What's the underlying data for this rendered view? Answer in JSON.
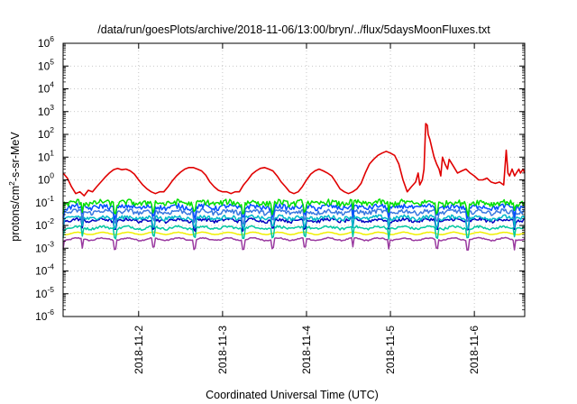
{
  "chart_data": {
    "type": "line",
    "title": "/data/run/goesPlots/archive/2018-11-06/13:00/bryn/../flux/5daysMoonFluxes.txt",
    "xlabel": "Coordinated Universal Time (UTC)",
    "ylabel": {
      "prefix": "protons/cm",
      "sup": "2",
      "suffix": "-s-sr-MeV"
    },
    "y_scale": "log",
    "ylim_exponents": [
      -6,
      6
    ],
    "y_tick_base": "10",
    "y_tick_exponents": [
      "-6",
      "-5",
      "-4",
      "-3",
      "-2",
      "-1",
      "0",
      "1",
      "2",
      "3",
      "4",
      "5",
      "6"
    ],
    "xlim_days": [
      1.1,
      6.6
    ],
    "x_ticks": [
      {
        "label": "2018-11-2",
        "day": 2
      },
      {
        "label": "2018-11-3",
        "day": 3
      },
      {
        "label": "2018-11-4",
        "day": 4
      },
      {
        "label": "2018-11-5",
        "day": 5
      },
      {
        "label": "2018-11-6",
        "day": 6
      }
    ],
    "grid": "dotted",
    "legend": "none",
    "series": [
      {
        "color": "#e00000",
        "x": [
          1.1,
          1.15,
          1.2,
          1.25,
          1.3,
          1.35,
          1.4,
          1.45,
          1.5,
          1.55,
          1.6,
          1.65,
          1.7,
          1.75,
          1.8,
          1.85,
          1.9,
          1.95,
          2.0,
          2.05,
          2.1,
          2.15,
          2.2,
          2.25,
          2.3,
          2.35,
          2.4,
          2.45,
          2.5,
          2.55,
          2.6,
          2.65,
          2.7,
          2.75,
          2.8,
          2.85,
          2.9,
          2.95,
          3.0,
          3.05,
          3.1,
          3.15,
          3.2,
          3.25,
          3.3,
          3.35,
          3.4,
          3.45,
          3.5,
          3.55,
          3.6,
          3.65,
          3.7,
          3.75,
          3.8,
          3.85,
          3.9,
          3.95,
          4.0,
          4.05,
          4.1,
          4.15,
          4.2,
          4.25,
          4.3,
          4.35,
          4.4,
          4.45,
          4.5,
          4.55,
          4.6,
          4.65,
          4.7,
          4.75,
          4.8,
          4.85,
          4.9,
          4.95,
          5.0,
          5.05,
          5.1,
          5.15,
          5.2,
          5.25,
          5.3,
          5.33,
          5.35,
          5.38,
          5.4,
          5.42,
          5.44,
          5.45,
          5.47,
          5.5,
          5.52,
          5.55,
          5.58,
          5.6,
          5.62,
          5.65,
          5.68,
          5.7,
          5.75,
          5.8,
          5.85,
          5.9,
          5.95,
          6.0,
          6.05,
          6.1,
          6.15,
          6.2,
          6.25,
          6.3,
          6.35,
          6.38,
          6.4,
          6.42,
          6.45,
          6.48,
          6.5,
          6.53,
          6.55,
          6.58,
          6.6
        ],
        "y": [
          2.0,
          1.2,
          0.5,
          0.25,
          0.3,
          0.2,
          0.35,
          0.3,
          0.5,
          0.8,
          1.3,
          2.0,
          2.8,
          3.2,
          2.8,
          3.0,
          2.5,
          1.8,
          1.0,
          0.6,
          0.4,
          0.3,
          0.25,
          0.3,
          0.3,
          0.5,
          0.9,
          1.5,
          2.2,
          3.0,
          3.5,
          3.5,
          3.0,
          2.5,
          1.6,
          0.8,
          0.5,
          0.35,
          0.3,
          0.3,
          0.25,
          0.3,
          0.3,
          0.6,
          1.0,
          1.8,
          2.5,
          3.2,
          3.5,
          3.0,
          2.5,
          1.5,
          0.8,
          0.5,
          0.3,
          0.25,
          0.3,
          0.5,
          1.0,
          1.8,
          2.5,
          3.0,
          2.5,
          2.0,
          1.5,
          0.8,
          0.4,
          0.3,
          0.25,
          0.3,
          0.4,
          0.7,
          2.0,
          5.0,
          8.0,
          12,
          15,
          18,
          15,
          12,
          5.0,
          1.0,
          0.3,
          0.5,
          0.8,
          2.0,
          0.6,
          1.0,
          3.0,
          300,
          250,
          100,
          60,
          20,
          10,
          5.0,
          3.0,
          1.5,
          10,
          5.0,
          3.0,
          8.0,
          4.0,
          2.0,
          2.5,
          3.0,
          2.0,
          1.5,
          1.0,
          1.0,
          1.2,
          0.8,
          0.7,
          0.8,
          0.6,
          20,
          2.0,
          1.5,
          3.0,
          1.5,
          2.0,
          3.0,
          2.0,
          3.0,
          2.0
        ]
      },
      {
        "color": "#00e000",
        "level": 0.1,
        "variation": 0.28,
        "dips": true
      },
      {
        "color": "#0050ff",
        "level": 0.065,
        "variation": 0.25,
        "dips": true
      },
      {
        "color": "#3878e0",
        "level": 0.04,
        "variation": 0.22,
        "dips": true
      },
      {
        "color": "#00b8c8",
        "level": 0.022,
        "variation": 0.2,
        "dips": true
      },
      {
        "color": "#0000c0",
        "level": 0.017,
        "variation": 0.16,
        "dips": true
      },
      {
        "color": "#00c8a0",
        "level": 0.008,
        "variation": 0.12,
        "dips": true
      },
      {
        "color": "#f0f000",
        "level": 0.0045,
        "variation": 0.02,
        "dips": false
      },
      {
        "color": "#9a3aa0",
        "level": 0.0025,
        "variation": 0.06,
        "dips": true
      }
    ]
  }
}
